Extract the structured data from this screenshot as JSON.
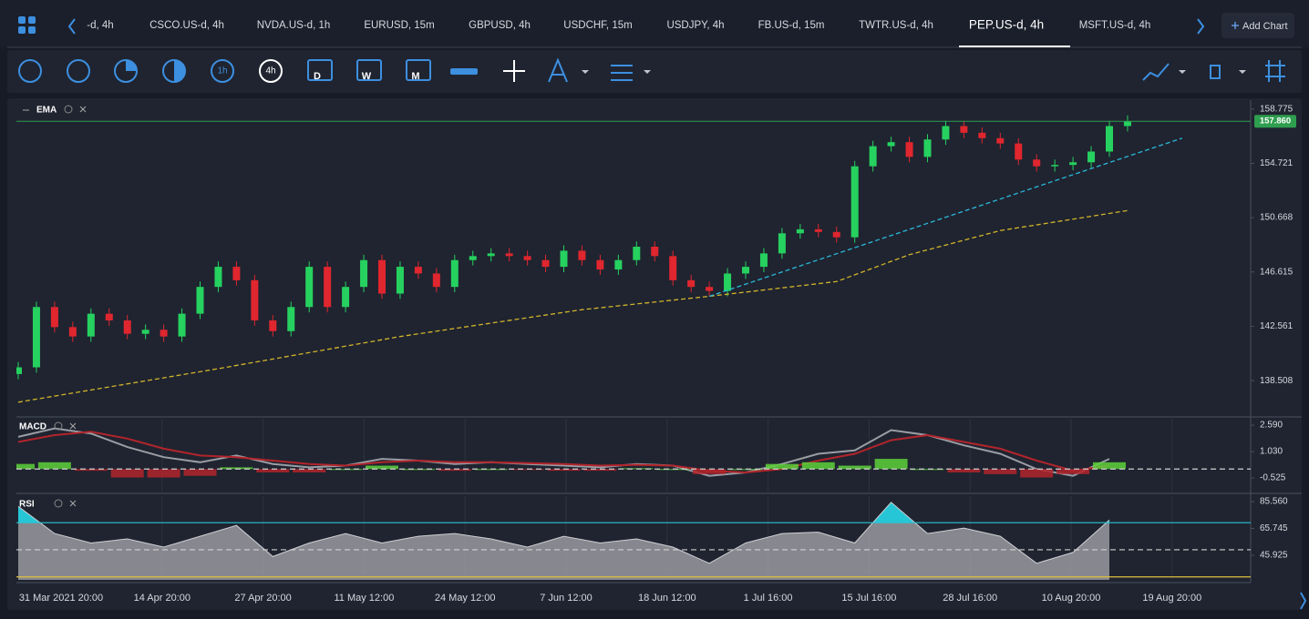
{
  "tabs": [
    {
      "label": "-d, 4h"
    },
    {
      "label": "CSCO.US-d, 4h"
    },
    {
      "label": "NVDA.US-d, 1h"
    },
    {
      "label": "EURUSD, 15m"
    },
    {
      "label": "GBPUSD, 4h"
    },
    {
      "label": "USDCHF, 15m"
    },
    {
      "label": "USDJPY, 4h"
    },
    {
      "label": "FB.US-d, 15m"
    },
    {
      "label": "TWTR.US-d, 4h"
    },
    {
      "label": "PEP.US-d, 4h",
      "active": true
    },
    {
      "label": "MSFT.US-d, 4h"
    }
  ],
  "add_chart": "Add Chart",
  "toolbar": {
    "timeframes": [
      "1h",
      "4h"
    ],
    "periods": [
      "D",
      "W",
      "M"
    ]
  },
  "time_axis": {
    "labels": [
      "31 Mar 2021 20:00",
      "14 Apr 20:00",
      "27 Apr 20:00",
      "11 May 12:00",
      "24 May 12:00",
      "7 Jun 12:00",
      "18 Jun 12:00",
      "1 Jul 16:00",
      "15 Jul 16:00",
      "28 Jul 16:00",
      "10 Aug 20:00",
      "19 Aug 20:00"
    ]
  },
  "chart_data": [
    {
      "type": "candlestick",
      "title": "EMA",
      "xlim": [
        0,
        68
      ],
      "ylim": [
        135.8,
        159.3
      ],
      "yticks": [
        158.775,
        154.721,
        150.668,
        146.615,
        142.561,
        138.508
      ],
      "up_color": "#26d15f",
      "down_color": "#e0262e",
      "open": [
        139,
        139.5,
        144,
        142.5,
        141.8,
        143.5,
        143,
        142,
        142.3,
        141.8,
        143.5,
        145.5,
        147,
        146,
        143,
        142.2,
        144,
        147,
        144,
        145.5,
        147.5,
        145,
        147,
        146.5,
        145.5,
        147.5,
        147.8,
        148,
        147.8,
        147.5,
        147,
        148.2,
        147.5,
        146.8,
        147.5,
        148.5,
        147.8,
        146,
        145.5,
        145.2,
        146.5,
        147,
        148,
        149.5,
        149.8,
        149.6,
        149.2,
        154.5,
        156,
        156.3,
        155.2,
        156.5,
        157.5,
        157,
        156.6,
        156.2,
        155,
        154.5,
        154.6,
        154.8,
        155.6,
        157.5
      ],
      "high": [
        139.9,
        144.4,
        144.4,
        142.9,
        143.9,
        143.9,
        143.4,
        142.7,
        142.7,
        143.9,
        145.9,
        147.4,
        147.4,
        146.4,
        143.4,
        144.4,
        147.4,
        147.4,
        145.9,
        147.9,
        147.9,
        147.4,
        147.4,
        146.9,
        147.9,
        148.2,
        148.4,
        148.4,
        148.2,
        147.9,
        148.6,
        148.6,
        147.9,
        147.9,
        148.9,
        148.9,
        148.2,
        146.4,
        145.9,
        146.9,
        147.4,
        148.4,
        149.9,
        150.2,
        150.2,
        150,
        154.9,
        156.4,
        156.7,
        156.7,
        156.9,
        157.9,
        157.9,
        157.4,
        157,
        156.6,
        155.4,
        155,
        155.2,
        156,
        157.9,
        158.3
      ],
      "low": [
        138.6,
        139.1,
        142.1,
        141.4,
        141.4,
        142.6,
        141.6,
        141.6,
        141.4,
        141.4,
        143.1,
        145.1,
        145.6,
        142.6,
        141.8,
        141.8,
        143.6,
        143.6,
        143.6,
        145.1,
        144.6,
        144.6,
        146.1,
        145.1,
        145.1,
        147.1,
        147.4,
        147.4,
        147.1,
        146.6,
        146.6,
        147.1,
        146.4,
        146.4,
        147.1,
        147.4,
        145.6,
        145.1,
        144.8,
        144.8,
        146.1,
        146.6,
        147.6,
        149.1,
        149.2,
        148.8,
        148.8,
        154.1,
        155.6,
        154.8,
        154.8,
        156.1,
        156.6,
        156.2,
        155.8,
        154.6,
        154.1,
        154.1,
        154.2,
        154.4,
        155.2,
        157.1
      ],
      "close": [
        139.5,
        144,
        142.5,
        141.8,
        143.5,
        143,
        142,
        142.3,
        141.8,
        143.5,
        145.5,
        147,
        146,
        143,
        142.2,
        144,
        147,
        144,
        145.5,
        147.5,
        145,
        147,
        146.5,
        145.5,
        147.5,
        147.8,
        148,
        147.8,
        147.5,
        147,
        148.2,
        147.5,
        146.8,
        147.5,
        148.5,
        147.8,
        146,
        145.5,
        145.2,
        146.5,
        147,
        148,
        149.5,
        149.8,
        149.6,
        149.2,
        154.5,
        156,
        156.3,
        155.2,
        156.5,
        157.5,
        157,
        156.6,
        156.2,
        155,
        154.5,
        154.6,
        154.8,
        155.6,
        157.5,
        157.86
      ],
      "series": [
        {
          "color": "#d4b42a",
          "dashed": true,
          "x": [
            0,
            11,
            21,
            31,
            38,
            45,
            49,
            54,
            61
          ],
          "values": [
            136.9,
            139.4,
            141.8,
            143.8,
            144.8,
            145.9,
            147.9,
            149.7,
            151.2
          ]
        },
        {
          "color": "#2bb8d9",
          "dashed": true,
          "x": [
            38,
            64
          ],
          "values": [
            144.8,
            156.6
          ]
        }
      ],
      "price_line": {
        "value": 157.86,
        "label": "157.860",
        "color": "#2e9e4f"
      }
    },
    {
      "type": "macd",
      "title": "MACD",
      "xlim": [
        0,
        68
      ],
      "ylim": [
        -1.33,
        2.97
      ],
      "yticks": [
        {
          "value": 2.59,
          "label": "2.590"
        },
        {
          "value": 1.03,
          "label": "1.030"
        },
        -0.525
      ],
      "levels": [
        {
          "value": 0,
          "color": "#d0d0d0",
          "dashed": true
        }
      ],
      "x": [
        0,
        2,
        4,
        6,
        8,
        10,
        12,
        14,
        16,
        18,
        20,
        22,
        24,
        26,
        28,
        30,
        32,
        34,
        36,
        38,
        40,
        42,
        44,
        46,
        48,
        50,
        52,
        54,
        56,
        58,
        60
      ],
      "series": [
        {
          "color": "#9a9da4",
          "values": [
            1.9,
            2.4,
            2.1,
            1.3,
            0.7,
            0.4,
            0.8,
            0.3,
            0.1,
            0.2,
            0.6,
            0.5,
            0.3,
            0.4,
            0.3,
            0.2,
            0.1,
            0.3,
            0.2,
            -0.4,
            -0.2,
            0.3,
            0.9,
            1.1,
            2.3,
            2.0,
            1.4,
            0.9,
            0.0,
            -0.4,
            0.6
          ]
        },
        {
          "color": "#b3242b",
          "values": [
            1.6,
            2.0,
            2.2,
            1.8,
            1.2,
            0.8,
            0.7,
            0.5,
            0.3,
            0.2,
            0.4,
            0.5,
            0.4,
            0.4,
            0.35,
            0.3,
            0.2,
            0.25,
            0.2,
            -0.1,
            -0.2,
            0.0,
            0.5,
            0.9,
            1.7,
            2.0,
            1.6,
            1.2,
            0.5,
            -0.1,
            0.2
          ]
        },
        {
          "type": "bar",
          "color": "#5dd13a",
          "negative_color": "#b3242b",
          "values": [
            0.3,
            0.4,
            -0.1,
            -0.5,
            -0.5,
            -0.4,
            0.1,
            -0.2,
            -0.2,
            0,
            0.2,
            0,
            -0.1,
            0,
            -0.05,
            -0.1,
            -0.1,
            0.05,
            0,
            -0.3,
            0,
            0.3,
            0.4,
            0.2,
            0.6,
            0,
            -0.2,
            -0.3,
            -0.5,
            -0.3,
            0.4
          ]
        }
      ]
    },
    {
      "type": "area",
      "title": "RSI",
      "xlim": [
        0,
        68
      ],
      "ylim": [
        27.8,
        89.6
      ],
      "yticks": [
        {
          "value": 85.56,
          "label": "85.560"
        },
        65.745,
        45.925
      ],
      "color": "#9a9aa0",
      "overbought_color": "#26c6d6",
      "levels": [
        {
          "value": 70,
          "color": "#26c6d6"
        },
        {
          "value": 50,
          "color": "#d0d0d0",
          "dashed": true
        },
        {
          "value": 30,
          "color": "#e0c040"
        }
      ],
      "x": [
        0,
        2,
        4,
        6,
        8,
        10,
        12,
        14,
        16,
        18,
        20,
        22,
        24,
        26,
        28,
        30,
        32,
        34,
        36,
        38,
        40,
        42,
        44,
        46,
        48,
        50,
        52,
        54,
        56,
        58,
        60
      ],
      "values": [
        82,
        62,
        55,
        58,
        52,
        60,
        68,
        45,
        55,
        62,
        55,
        60,
        62,
        58,
        52,
        60,
        55,
        58,
        52,
        40,
        55,
        62,
        63,
        55,
        85,
        62,
        66,
        60,
        40,
        48,
        72
      ]
    }
  ]
}
